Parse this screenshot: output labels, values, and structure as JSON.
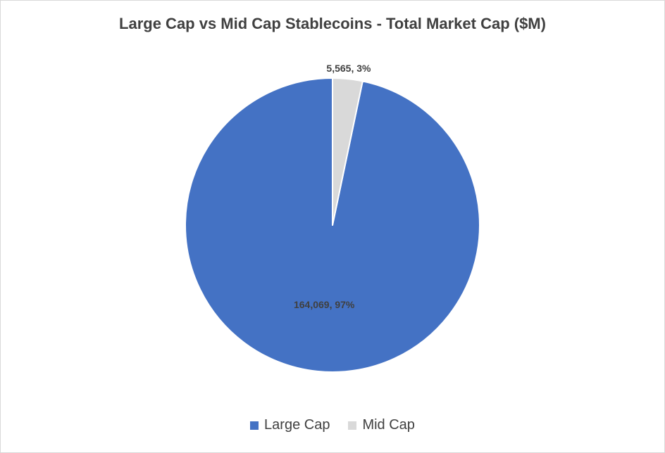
{
  "chart_data": {
    "type": "pie",
    "title": "Large Cap vs Mid Cap Stablecoins - Total Market Cap ($M)",
    "categories": [
      "Large Cap",
      "Mid Cap"
    ],
    "values": [
      164069,
      5565
    ],
    "percent_labels": [
      "97%",
      "3%"
    ],
    "data_labels": [
      "164,069, 97%",
      "5,565, 3%"
    ],
    "colors": [
      "#4472C4",
      "#D9D9D9"
    ],
    "legend_position": "bottom",
    "start_angle_deg": 0,
    "direction": "counterclockwise"
  },
  "legend": {
    "items": [
      {
        "label": "Large Cap",
        "color": "#4472C4"
      },
      {
        "label": "Mid Cap",
        "color": "#D9D9D9"
      }
    ]
  }
}
